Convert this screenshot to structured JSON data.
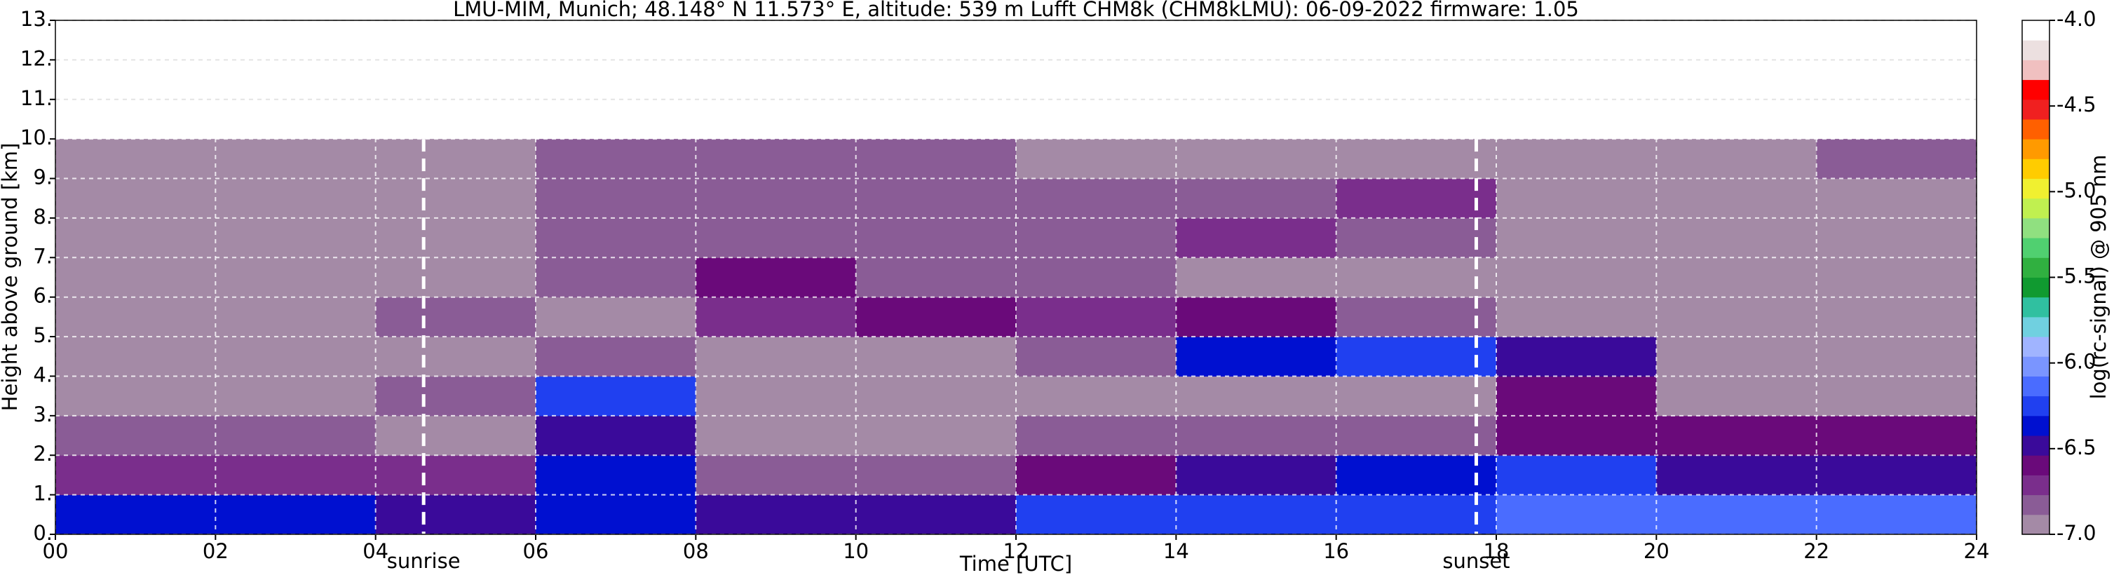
{
  "chart_data": {
    "type": "heatmap",
    "title": "LMU-MIM, Munich; 48.148° N 11.573° E, altitude: 539 m    Lufft CHM8k (CHM8kLMU): 06-09-2022    firmware: 1.05",
    "xlabel": "Time [UTC]",
    "ylabel": "Height above ground [km]",
    "colorbar_label": "log(rc-signal) @ 905 nm",
    "xlim": [
      0,
      24
    ],
    "ylim": [
      0,
      13
    ],
    "xticks": [
      {
        "value": 0,
        "label": "00"
      },
      {
        "value": 2,
        "label": "02"
      },
      {
        "value": 4,
        "label": "04"
      },
      {
        "value": 6,
        "label": "06"
      },
      {
        "value": 8,
        "label": "08"
      },
      {
        "value": 10,
        "label": "10"
      },
      {
        "value": 12,
        "label": "12"
      },
      {
        "value": 14,
        "label": "14"
      },
      {
        "value": 16,
        "label": "16"
      },
      {
        "value": 18,
        "label": "18"
      },
      {
        "value": 20,
        "label": "20"
      },
      {
        "value": 22,
        "label": "22"
      },
      {
        "value": 24,
        "label": "24"
      }
    ],
    "yticks": [
      {
        "value": 0,
        "label": "0."
      },
      {
        "value": 1,
        "label": "1."
      },
      {
        "value": 2,
        "label": "2."
      },
      {
        "value": 3,
        "label": "3."
      },
      {
        "value": 4,
        "label": "4."
      },
      {
        "value": 5,
        "label": "5."
      },
      {
        "value": 6,
        "label": "6."
      },
      {
        "value": 7,
        "label": "7."
      },
      {
        "value": 8,
        "label": "8."
      },
      {
        "value": 9,
        "label": "9."
      },
      {
        "value": 10,
        "label": "10."
      },
      {
        "value": 11,
        "label": "11."
      },
      {
        "value": 12,
        "label": "12."
      },
      {
        "value": 13,
        "label": "13."
      }
    ],
    "grid": true,
    "xbins": [
      0,
      2,
      4,
      6,
      8,
      10,
      12,
      14,
      16,
      18,
      20,
      22,
      24
    ],
    "ybins": [
      0,
      1,
      2,
      3,
      4,
      5,
      6,
      7,
      8,
      9,
      10
    ],
    "z": [
      [
        -6.4,
        -6.4,
        -6.5,
        -6.4,
        -6.5,
        -6.5,
        -6.2,
        -6.2,
        -6.2,
        -6.1,
        -6.1,
        -6.1
      ],
      [
        -6.7,
        -6.7,
        -6.7,
        -6.4,
        -6.8,
        -6.8,
        -6.6,
        -6.5,
        -6.4,
        -6.2,
        -6.5,
        -6.5
      ],
      [
        -6.8,
        -6.8,
        -6.9,
        -6.5,
        -6.9,
        -6.9,
        -6.8,
        -6.8,
        -6.8,
        -6.6,
        -6.6,
        -6.6
      ],
      [
        -6.9,
        -6.9,
        -6.8,
        -6.3,
        -6.9,
        -6.9,
        -6.9,
        -6.9,
        -6.9,
        -6.6,
        -6.9,
        -6.9
      ],
      [
        -6.9,
        -6.9,
        -6.9,
        -6.8,
        -6.9,
        -6.9,
        -6.8,
        -6.4,
        -6.3,
        -6.5,
        -6.9,
        -6.9
      ],
      [
        -6.9,
        -6.9,
        -6.8,
        -6.9,
        -6.7,
        -6.6,
        -6.7,
        -6.6,
        -6.8,
        -6.9,
        -6.9,
        -6.9
      ],
      [
        -6.9,
        -6.9,
        -6.9,
        -6.8,
        -6.6,
        -6.8,
        -6.8,
        -6.9,
        -6.9,
        -6.9,
        -6.9,
        -6.9
      ],
      [
        -6.9,
        -6.9,
        -6.9,
        -6.8,
        -6.8,
        -6.8,
        -6.8,
        -6.7,
        -6.8,
        -6.9,
        -6.9,
        -6.9
      ],
      [
        -6.9,
        -6.9,
        -6.9,
        -6.8,
        -6.8,
        -6.8,
        -6.8,
        -6.8,
        -6.7,
        -6.9,
        -6.9,
        -6.9
      ],
      [
        -6.9,
        -6.9,
        -6.9,
        -6.8,
        -6.8,
        -6.8,
        -6.9,
        -6.9,
        -6.9,
        -6.9,
        -6.9,
        -6.8
      ]
    ],
    "zlim": [
      -7.0,
      -4.0
    ],
    "colorbar_ticks": [
      {
        "value": -4.0,
        "label": "-4.0"
      },
      {
        "value": -4.5,
        "label": "-4.5"
      },
      {
        "value": -5.0,
        "label": "-5.0"
      },
      {
        "value": -5.5,
        "label": "-5.5"
      },
      {
        "value": -6.0,
        "label": "-6.0"
      },
      {
        "value": -6.5,
        "label": "-6.5"
      },
      {
        "value": -7.0,
        "label": "-7.0"
      }
    ],
    "colors": [
      "#a48aa6",
      "#8a5c96",
      "#7a2e8c",
      "#6a0a7a",
      "#3a0a9a",
      "#0010d0",
      "#2040f0",
      "#4a6cff",
      "#7a95ff",
      "#a0b4ff",
      "#70d0e0",
      "#30c0a0",
      "#109a30",
      "#30b040",
      "#50d070",
      "#90e080",
      "#c0f050",
      "#f0f030",
      "#ffcc00",
      "#ff9a00",
      "#ff6000",
      "#f02020",
      "#ff0000",
      "#f0c0c0",
      "#ece0e0",
      "#ffffff"
    ],
    "annotations": [
      {
        "text": "sunrise",
        "x": 4.6
      },
      {
        "text": "sunset",
        "x": 17.75
      }
    ]
  }
}
